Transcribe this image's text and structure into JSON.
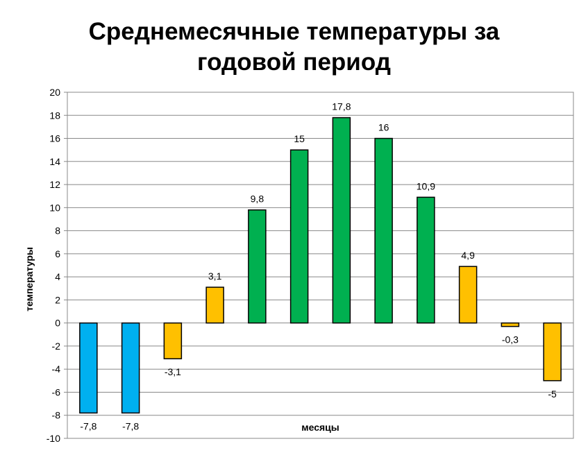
{
  "chart_data": {
    "type": "bar",
    "title_lines": [
      "Среднемесячные температуры за",
      "годовой период"
    ],
    "xlabel": "месяцы",
    "ylabel": "температуры",
    "ylim": [
      -10,
      20
    ],
    "y_ticks": [
      20,
      18,
      16,
      14,
      12,
      10,
      8,
      6,
      4,
      2,
      0,
      -2,
      -4,
      -6,
      -8,
      -10
    ],
    "grid": true,
    "values": [
      -7.8,
      -7.8,
      -3.1,
      3.1,
      9.8,
      15,
      17.8,
      16,
      10.9,
      4.9,
      -0.3,
      -5
    ],
    "data_labels": [
      "-7,8",
      "-7,8",
      "-3,1",
      "3,1",
      "9,8",
      "15",
      "17,8",
      "16",
      "10,9",
      "4,9",
      "-0,3",
      "-5"
    ],
    "bar_colors": [
      "#00b0f0",
      "#00b0f0",
      "#ffc000",
      "#ffc000",
      "#00b050",
      "#00b050",
      "#00b050",
      "#00b050",
      "#00b050",
      "#ffc000",
      "#ffc000",
      "#ffc000"
    ]
  }
}
